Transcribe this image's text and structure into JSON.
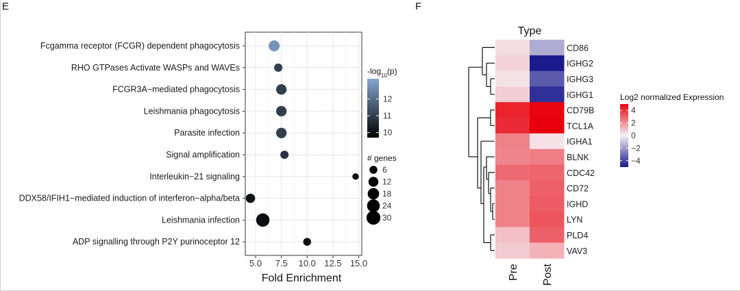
{
  "panels": [
    {
      "label": "E"
    },
    {
      "label": "F"
    }
  ],
  "chart_data": [
    {
      "type": "scatter",
      "panel": "E",
      "xlabel": "Fold Enrichment",
      "ylabel": "",
      "xlim": [
        4,
        15.3
      ],
      "xticks": [
        "5.0",
        "7.5",
        "10.0",
        "12.5",
        "15.0"
      ],
      "xtick_values": [
        5,
        7.5,
        10,
        12.5,
        15
      ],
      "grid": true,
      "legend_position": "right",
      "categories": [
        "Fcgamma receptor (FCGR) dependent phagocytosis",
        "RHO GTPases Activate WASPs and WAVEs",
        "FCGR3A−mediated phagocytosis",
        "Leishmania phagocytosis",
        "Parasite infection",
        "Signal amplification",
        "Interleukin−21 signaling",
        "DDX58/IFIH1−mediated induction of interferon−alpha/beta",
        "Leishmania infection",
        "ADP signalling through P2Y purinoceptor 12"
      ],
      "points": [
        {
          "fold_enrichment": 6.8,
          "neg_log10_p": 12.8,
          "genes": 16
        },
        {
          "fold_enrichment": 7.2,
          "neg_log10_p": 11.0,
          "genes": 7
        },
        {
          "fold_enrichment": 7.5,
          "neg_log10_p": 11.0,
          "genes": 14
        },
        {
          "fold_enrichment": 7.5,
          "neg_log10_p": 11.0,
          "genes": 14
        },
        {
          "fold_enrichment": 7.5,
          "neg_log10_p": 11.0,
          "genes": 14
        },
        {
          "fold_enrichment": 7.8,
          "neg_log10_p": 10.8,
          "genes": 7
        },
        {
          "fold_enrichment": 14.7,
          "neg_log10_p": 10.0,
          "genes": 3
        },
        {
          "fold_enrichment": 4.5,
          "neg_log10_p": 10.1,
          "genes": 10
        },
        {
          "fold_enrichment": 5.7,
          "neg_log10_p": 10.0,
          "genes": 27
        },
        {
          "fold_enrichment": 10.0,
          "neg_log10_p": 10.0,
          "genes": 6
        }
      ],
      "color_legend": {
        "title": "-log₁₀(p)",
        "ticks": [
          "12",
          "11",
          "10"
        ],
        "tick_values": [
          12,
          11,
          10
        ],
        "range": [
          9.7,
          13.2
        ],
        "color_low": "#000000",
        "color_high": "#86a7cf"
      },
      "size_legend": {
        "title": "# genes",
        "labels": [
          "6",
          "12",
          "18",
          "24",
          "30"
        ],
        "values": [
          6,
          12,
          18,
          24,
          30
        ]
      }
    },
    {
      "type": "heatmap",
      "panel": "F",
      "title": "Type",
      "columns": [
        "Pre",
        "Post"
      ],
      "rows": [
        "CD86",
        "IGHG2",
        "IGHG3",
        "IGHG1",
        "CD79B",
        "TCL1A",
        "IGHA1",
        "BLNK",
        "CDC42",
        "CD72",
        "IGHD",
        "LYN",
        "PLD4",
        "VAV3"
      ],
      "values": [
        [
          0.4,
          -1.6
        ],
        [
          0.6,
          -5.0
        ],
        [
          0.3,
          -3.5
        ],
        [
          0.7,
          -4.5
        ],
        [
          4.3,
          4.9
        ],
        [
          4.1,
          5.0
        ],
        [
          2.3,
          0.3
        ],
        [
          2.2,
          2.4
        ],
        [
          2.8,
          2.9
        ],
        [
          2.3,
          3.0
        ],
        [
          2.3,
          3.1
        ],
        [
          2.3,
          3.2
        ],
        [
          1.0,
          3.0
        ],
        [
          0.8,
          1.3
        ]
      ],
      "color_scale": {
        "title": "Log2 normalized Expression",
        "ticks": [
          "4",
          "2",
          "0",
          "−2",
          "−4"
        ],
        "tick_values": [
          4,
          2,
          0,
          -2,
          -4
        ],
        "range": [
          -5,
          5
        ],
        "color_low": "#1a1a8c",
        "color_mid": "#f5f0f5",
        "color_high": "#e8000b"
      }
    }
  ]
}
